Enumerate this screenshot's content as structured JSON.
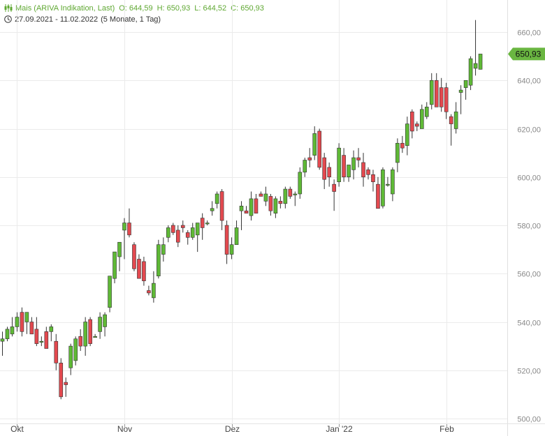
{
  "header": {
    "instrument": "Mais (ARIVA Indikation, Last)",
    "open": "O: 644,59",
    "high": "H: 650,93",
    "low": "L: 644,52",
    "close": "C: 650,93",
    "range": "27.09.2021 - 11.02.2022",
    "period": "(5 Monate, 1 Tag)"
  },
  "icons": {
    "chart": "candlestick-icon",
    "time": "clock-icon"
  },
  "colors": {
    "up": "#5fb936",
    "down": "#e3494f",
    "header": "#5fa832",
    "price_badge": "#6ab641"
  },
  "chart_data": {
    "type": "candlestick",
    "ylim": [
      500,
      670
    ],
    "y_ticks": [
      "500,00",
      "520,00",
      "540,00",
      "560,00",
      "580,00",
      "600,00",
      "620,00",
      "640,00",
      "660,00"
    ],
    "y_tick_values": [
      500,
      520,
      540,
      560,
      580,
      600,
      620,
      640,
      660
    ],
    "x_ticks": [
      {
        "label": "Okt",
        "index": 3
      },
      {
        "label": "Nov",
        "index": 25
      },
      {
        "label": "Dez",
        "index": 47
      },
      {
        "label": "Jan '22",
        "index": 69
      },
      {
        "label": "Feb",
        "index": 91
      }
    ],
    "last_price": "650,93",
    "last_price_value": 650.93,
    "candles": [
      [
        532,
        536,
        526,
        533
      ],
      [
        533,
        538,
        532,
        537
      ],
      [
        535,
        542,
        534,
        538
      ],
      [
        538,
        544,
        536,
        542
      ],
      [
        544,
        546,
        534,
        536
      ],
      [
        540,
        544,
        535,
        544
      ],
      [
        540,
        542,
        536,
        535
      ],
      [
        537,
        542,
        530,
        531
      ],
      [
        532,
        534,
        530,
        532
      ],
      [
        536,
        538,
        530,
        529
      ],
      [
        536,
        539,
        532,
        538
      ],
      [
        532,
        535,
        520,
        523
      ],
      [
        523,
        525,
        508,
        509
      ],
      [
        515,
        517,
        509,
        514
      ],
      [
        521,
        531,
        518,
        530
      ],
      [
        524,
        534,
        522,
        533
      ],
      [
        534,
        537,
        528,
        530
      ],
      [
        530,
        542,
        526,
        540
      ],
      [
        541,
        542,
        530,
        531
      ],
      [
        534,
        535,
        534,
        534
      ],
      [
        536,
        544,
        533,
        542
      ],
      [
        538,
        544,
        534,
        543
      ],
      [
        546,
        559,
        544,
        559
      ],
      [
        558,
        569,
        556,
        569
      ],
      [
        567,
        572,
        561,
        573
      ],
      [
        578,
        583,
        566,
        581
      ],
      [
        581,
        587,
        575,
        576
      ],
      [
        572,
        573,
        561,
        562
      ],
      [
        566,
        568,
        558,
        558
      ],
      [
        565,
        567,
        555,
        557
      ],
      [
        553,
        555,
        551,
        552
      ],
      [
        550,
        561,
        548,
        556
      ],
      [
        559,
        574,
        558,
        572
      ],
      [
        568,
        575,
        565,
        572
      ],
      [
        575,
        580,
        573,
        579
      ],
      [
        580,
        581,
        576,
        577
      ],
      [
        578,
        580,
        571,
        573
      ],
      [
        580,
        582,
        577,
        579
      ],
      [
        577,
        578,
        572,
        575
      ],
      [
        575,
        581,
        574,
        579
      ],
      [
        576,
        581,
        569,
        581
      ],
      [
        583,
        585,
        574,
        579
      ],
      [
        581,
        582,
        580,
        581
      ],
      [
        586,
        590,
        584,
        587
      ],
      [
        589,
        594,
        587,
        593
      ],
      [
        594,
        595,
        578,
        582
      ],
      [
        580,
        582,
        564,
        568
      ],
      [
        568,
        575,
        566,
        572
      ],
      [
        572,
        582,
        572,
        579
      ],
      [
        586,
        590,
        578,
        588
      ],
      [
        586,
        588,
        585,
        585
      ],
      [
        584,
        594,
        582,
        591
      ],
      [
        591,
        593,
        585,
        585
      ],
      [
        593,
        594,
        592,
        592
      ],
      [
        590,
        596,
        588,
        593
      ],
      [
        592,
        593,
        584,
        586
      ],
      [
        585,
        592,
        583,
        591
      ],
      [
        590,
        592,
        587,
        589
      ],
      [
        589,
        596,
        587,
        595
      ],
      [
        595,
        596,
        591,
        592
      ],
      [
        593,
        594,
        588,
        593
      ],
      [
        593,
        604,
        591,
        602
      ],
      [
        602,
        608,
        600,
        607
      ],
      [
        608,
        612,
        604,
        607
      ],
      [
        609,
        621,
        607,
        618
      ],
      [
        619,
        620,
        603,
        604
      ],
      [
        608,
        610,
        595,
        599
      ],
      [
        604,
        606,
        596,
        600
      ],
      [
        597,
        599,
        586,
        594
      ],
      [
        598,
        614,
        596,
        612
      ],
      [
        609,
        612,
        598,
        600
      ],
      [
        600,
        605,
        598,
        605
      ],
      [
        603,
        611,
        599,
        608
      ],
      [
        608,
        612,
        604,
        607
      ],
      [
        606,
        610,
        596,
        600
      ],
      [
        603,
        604,
        599,
        601
      ],
      [
        601,
        603,
        594,
        598
      ],
      [
        597,
        600,
        587,
        587
      ],
      [
        588,
        604,
        587,
        603
      ],
      [
        597,
        600,
        596,
        597
      ],
      [
        593,
        604,
        590,
        603
      ],
      [
        606,
        616,
        602,
        614
      ],
      [
        614,
        617,
        610,
        612
      ],
      [
        613,
        625,
        609,
        622
      ],
      [
        627,
        628,
        616,
        619
      ],
      [
        622,
        623,
        619,
        621
      ],
      [
        620,
        630,
        620,
        628
      ],
      [
        625,
        631,
        624,
        629
      ],
      [
        630,
        643,
        628,
        640
      ],
      [
        640,
        643,
        629,
        629
      ],
      [
        637,
        641,
        627,
        629
      ],
      [
        637,
        639,
        624,
        627
      ],
      [
        625,
        626,
        613,
        622
      ],
      [
        620,
        631,
        618,
        627
      ],
      [
        635,
        638,
        626,
        636
      ],
      [
        637,
        640,
        632,
        640
      ],
      [
        638,
        650,
        636,
        649
      ],
      [
        645,
        665,
        642,
        647
      ],
      [
        644.59,
        650.93,
        644.52,
        650.93
      ]
    ]
  }
}
